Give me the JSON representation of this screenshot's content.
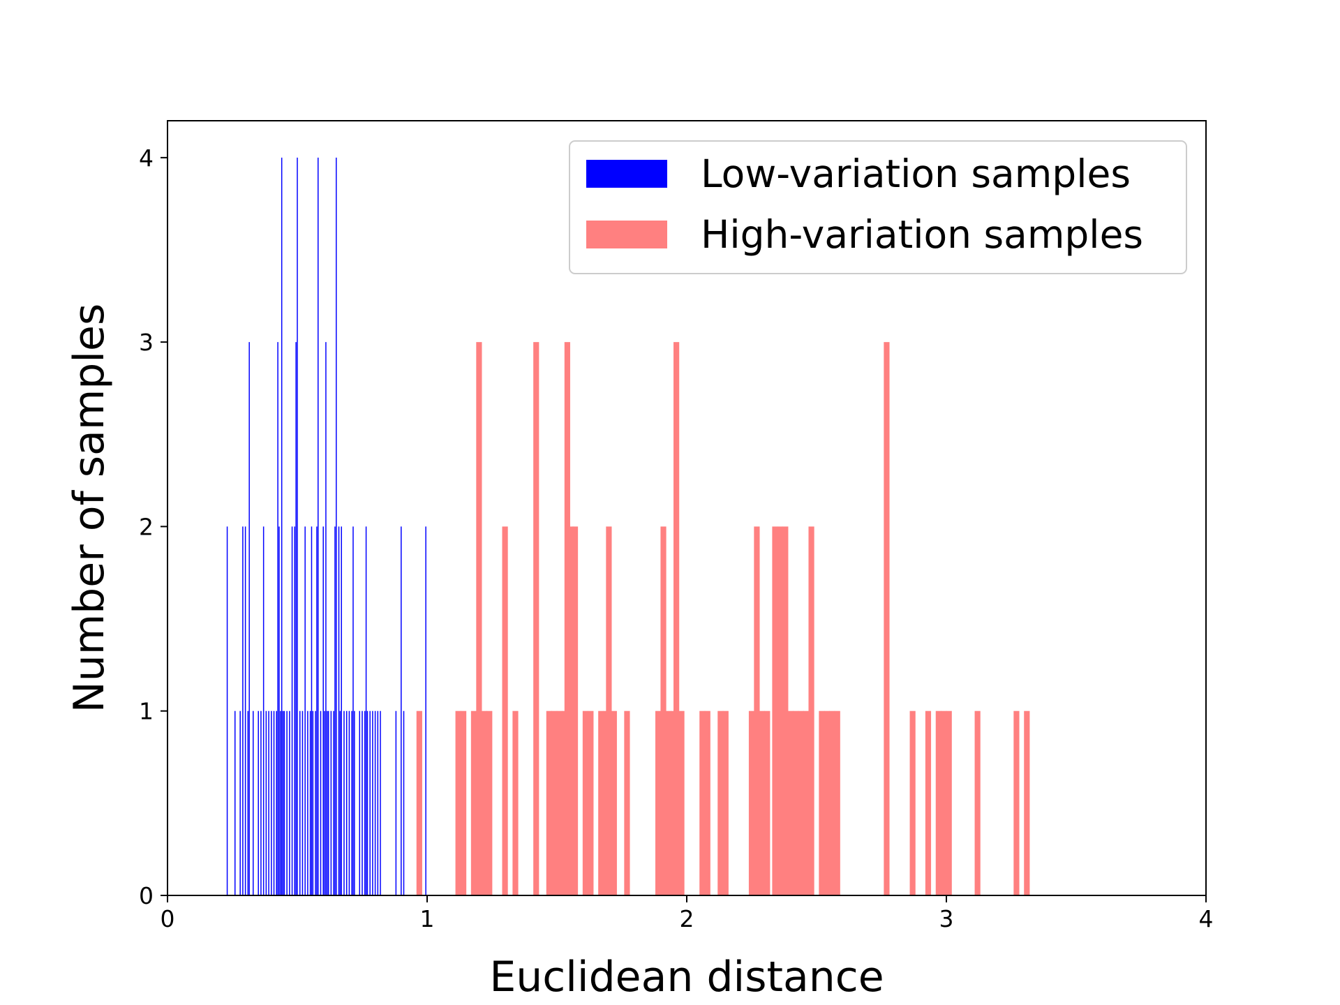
{
  "chart_data": {
    "type": "bar",
    "title": "",
    "xlabel": "Euclidean distance",
    "ylabel": "Number of samples",
    "xlim": [
      0,
      4
    ],
    "ylim": [
      0,
      4.2
    ],
    "xticks": [
      "0",
      "1",
      "2",
      "3",
      "4"
    ],
    "yticks": [
      "0",
      "1",
      "2",
      "3",
      "4"
    ],
    "grid": false,
    "legend_position": "top-right",
    "series": [
      {
        "name": "Low-variation samples",
        "color": "#0000ff",
        "bin_width": 0.004,
        "points": [
          [
            0.23,
            2
          ],
          [
            0.26,
            1
          ],
          [
            0.28,
            1
          ],
          [
            0.29,
            2
          ],
          [
            0.3,
            2
          ],
          [
            0.31,
            1
          ],
          [
            0.315,
            3
          ],
          [
            0.33,
            1
          ],
          [
            0.35,
            1
          ],
          [
            0.36,
            1
          ],
          [
            0.37,
            2
          ],
          [
            0.38,
            1
          ],
          [
            0.39,
            1
          ],
          [
            0.4,
            1
          ],
          [
            0.41,
            1
          ],
          [
            0.42,
            1
          ],
          [
            0.425,
            3
          ],
          [
            0.43,
            2
          ],
          [
            0.435,
            1
          ],
          [
            0.44,
            4
          ],
          [
            0.445,
            1
          ],
          [
            0.45,
            1
          ],
          [
            0.46,
            1
          ],
          [
            0.47,
            1
          ],
          [
            0.48,
            2
          ],
          [
            0.49,
            2
          ],
          [
            0.495,
            3
          ],
          [
            0.5,
            4
          ],
          [
            0.51,
            1
          ],
          [
            0.52,
            1
          ],
          [
            0.53,
            2
          ],
          [
            0.54,
            1
          ],
          [
            0.55,
            1
          ],
          [
            0.555,
            2
          ],
          [
            0.56,
            1
          ],
          [
            0.57,
            1
          ],
          [
            0.575,
            2
          ],
          [
            0.58,
            4
          ],
          [
            0.59,
            1
          ],
          [
            0.6,
            2
          ],
          [
            0.605,
            1
          ],
          [
            0.61,
            3
          ],
          [
            0.615,
            1
          ],
          [
            0.62,
            1
          ],
          [
            0.63,
            1
          ],
          [
            0.64,
            1
          ],
          [
            0.645,
            2
          ],
          [
            0.65,
            4
          ],
          [
            0.66,
            2
          ],
          [
            0.665,
            1
          ],
          [
            0.67,
            2
          ],
          [
            0.68,
            1
          ],
          [
            0.69,
            1
          ],
          [
            0.7,
            1
          ],
          [
            0.71,
            1
          ],
          [
            0.715,
            2
          ],
          [
            0.72,
            1
          ],
          [
            0.74,
            1
          ],
          [
            0.75,
            1
          ],
          [
            0.76,
            1
          ],
          [
            0.765,
            2
          ],
          [
            0.77,
            1
          ],
          [
            0.78,
            1
          ],
          [
            0.79,
            1
          ],
          [
            0.8,
            1
          ],
          [
            0.81,
            1
          ],
          [
            0.82,
            1
          ],
          [
            0.88,
            1
          ],
          [
            0.9,
            2
          ],
          [
            0.91,
            1
          ],
          [
            0.995,
            2
          ]
        ]
      },
      {
        "name": "High-variation samples",
        "color": "#ff8080",
        "bin_width": 0.022,
        "points": [
          [
            0.97,
            1
          ],
          [
            1.12,
            1
          ],
          [
            1.14,
            1
          ],
          [
            1.18,
            1
          ],
          [
            1.2,
            3
          ],
          [
            1.22,
            1
          ],
          [
            1.24,
            1
          ],
          [
            1.3,
            2
          ],
          [
            1.34,
            1
          ],
          [
            1.42,
            3
          ],
          [
            1.47,
            1
          ],
          [
            1.49,
            1
          ],
          [
            1.51,
            1
          ],
          [
            1.53,
            1
          ],
          [
            1.54,
            3
          ],
          [
            1.555,
            2
          ],
          [
            1.57,
            2
          ],
          [
            1.61,
            1
          ],
          [
            1.63,
            1
          ],
          [
            1.67,
            1
          ],
          [
            1.69,
            1
          ],
          [
            1.7,
            2
          ],
          [
            1.72,
            1
          ],
          [
            1.77,
            1
          ],
          [
            1.89,
            1
          ],
          [
            1.91,
            2
          ],
          [
            1.93,
            1
          ],
          [
            1.95,
            1
          ],
          [
            1.96,
            3
          ],
          [
            1.98,
            1
          ],
          [
            2.06,
            1
          ],
          [
            2.08,
            1
          ],
          [
            2.13,
            1
          ],
          [
            2.15,
            1
          ],
          [
            2.25,
            1
          ],
          [
            2.27,
            2
          ],
          [
            2.29,
            1
          ],
          [
            2.31,
            1
          ],
          [
            2.34,
            2
          ],
          [
            2.36,
            2
          ],
          [
            2.38,
            2
          ],
          [
            2.4,
            1
          ],
          [
            2.42,
            1
          ],
          [
            2.44,
            1
          ],
          [
            2.46,
            1
          ],
          [
            2.48,
            2
          ],
          [
            2.52,
            1
          ],
          [
            2.54,
            1
          ],
          [
            2.56,
            1
          ],
          [
            2.58,
            1
          ],
          [
            2.77,
            3
          ],
          [
            2.87,
            1
          ],
          [
            2.93,
            1
          ],
          [
            2.97,
            1
          ],
          [
            2.99,
            1
          ],
          [
            3.01,
            1
          ],
          [
            3.12,
            1
          ],
          [
            3.27,
            1
          ],
          [
            3.31,
            1
          ]
        ]
      }
    ]
  }
}
